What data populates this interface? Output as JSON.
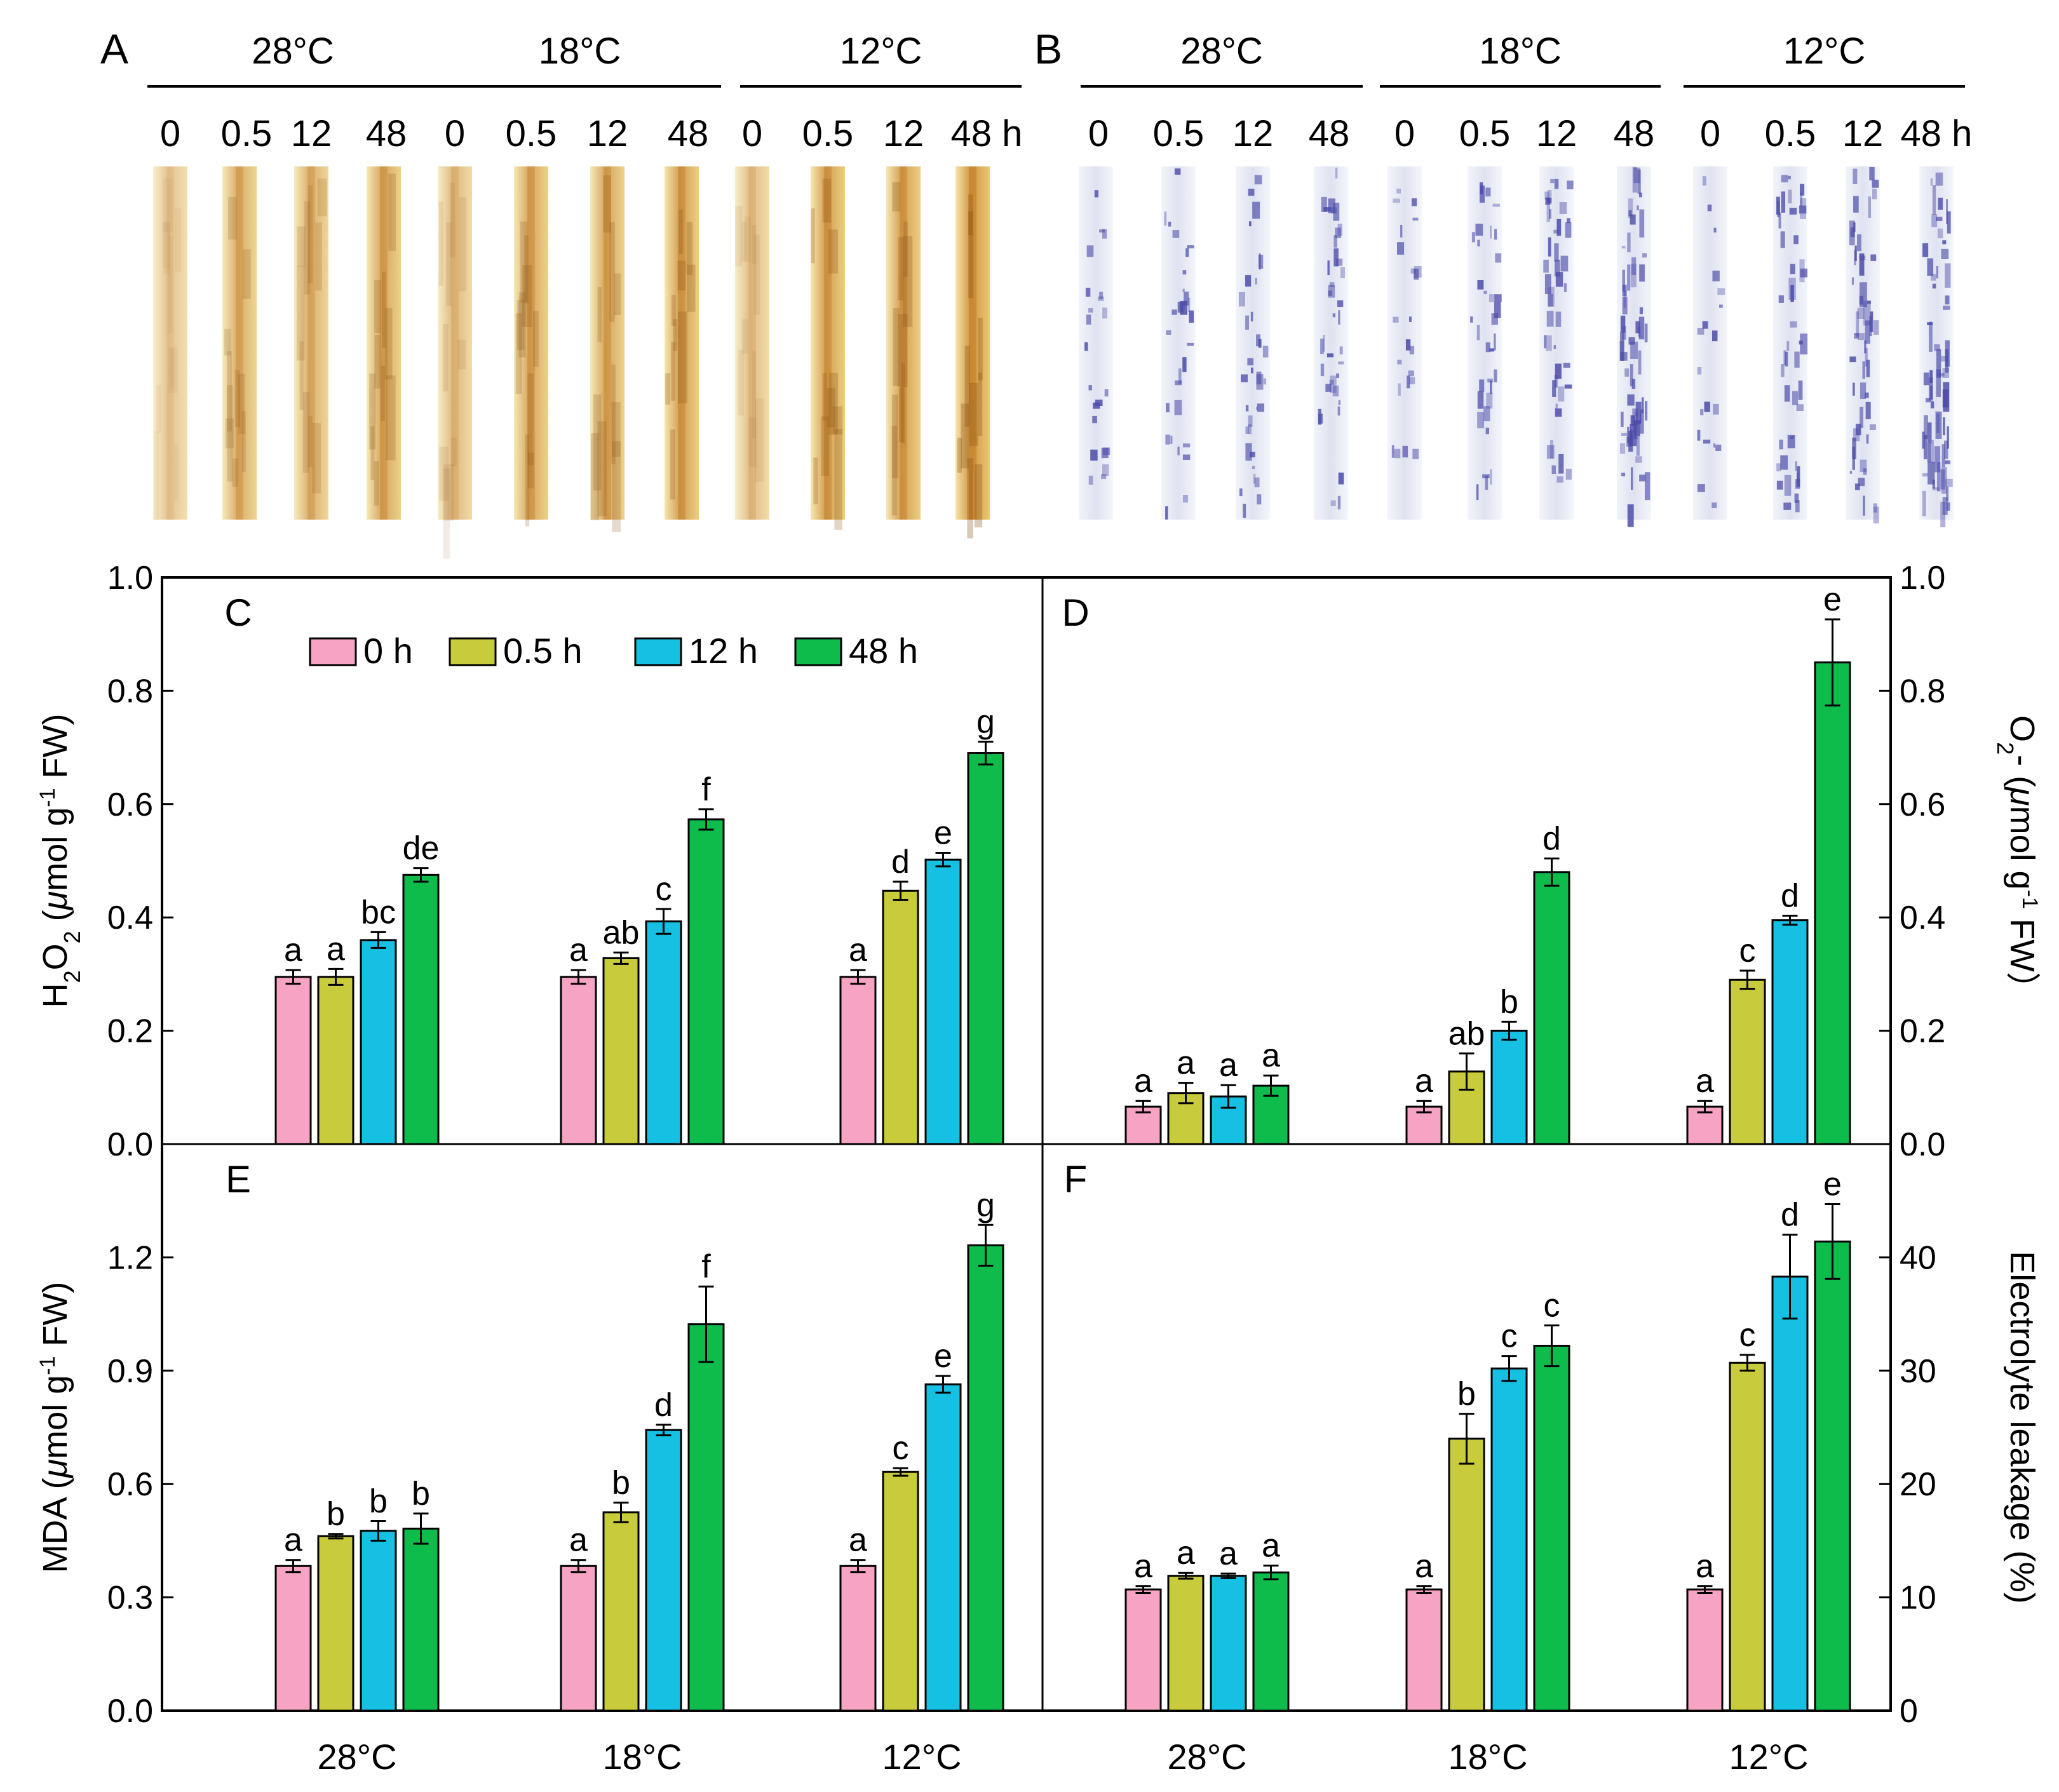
{
  "colors": {
    "h0": "#f7a3c3",
    "h05": "#c8cc3c",
    "h12": "#16c0e3",
    "h48": "#0ebc4c",
    "dab_light": "#f0d58a",
    "dab_dark": "#c0781e",
    "nbt_bg": "#eef2f8",
    "nbt_stain": "#4a4aa8"
  },
  "photos": {
    "A": {
      "label": "A",
      "groups": [
        {
          "temp": "28°C",
          "times": [
            "0",
            "0.5",
            "12",
            "48"
          ]
        },
        {
          "temp": "18°C",
          "times": [
            "0",
            "0.5",
            "12",
            "48"
          ]
        },
        {
          "temp": "12°C",
          "times": [
            "0",
            "0.5",
            "12",
            "48 h"
          ]
        }
      ],
      "stain_intensity": [
        0.15,
        0.5,
        0.45,
        0.6,
        0.3,
        0.6,
        0.6,
        0.7,
        0.25,
        0.7,
        0.7,
        0.85
      ]
    },
    "B": {
      "label": "B",
      "groups": [
        {
          "temp": "28°C",
          "times": [
            "0",
            "0.5",
            "12",
            "48"
          ]
        },
        {
          "temp": "18°C",
          "times": [
            "0",
            "0.5",
            "12",
            "48"
          ]
        },
        {
          "temp": "12°C",
          "times": [
            "0",
            "0.5",
            "12",
            "48 h"
          ]
        }
      ],
      "stain_intensity": [
        0.2,
        0.3,
        0.4,
        0.45,
        0.2,
        0.4,
        0.55,
        0.85,
        0.15,
        0.6,
        0.7,
        0.9
      ]
    }
  },
  "legend": {
    "items": [
      "0 h",
      "0.5 h",
      "12 h",
      "48 h"
    ]
  },
  "chart_data": [
    {
      "panel": "C",
      "type": "bar",
      "categories": [
        "28°C",
        "18°C",
        "12°C"
      ],
      "ylabel_parts": [
        "H",
        "2",
        "O",
        "2",
        " (",
        "μ",
        "mol g",
        "-1",
        " FW)"
      ],
      "ylim": [
        0,
        1.0
      ],
      "yticks": [
        "0.0",
        "0.2",
        "0.4",
        "0.6",
        "0.8",
        "1.0"
      ],
      "series": [
        {
          "name": "0 h",
          "values": [
            0.295,
            0.295,
            0.295
          ],
          "errors": [
            0.012,
            0.012,
            0.012
          ],
          "letters": [
            "a",
            "a",
            "a"
          ]
        },
        {
          "name": "0.5 h",
          "values": [
            0.295,
            0.328,
            0.447
          ],
          "errors": [
            0.014,
            0.01,
            0.016
          ],
          "letters": [
            "a",
            "ab",
            "d"
          ]
        },
        {
          "name": "12 h",
          "values": [
            0.36,
            0.393,
            0.502
          ],
          "errors": [
            0.014,
            0.022,
            0.012
          ],
          "letters": [
            "bc",
            "c",
            "e"
          ]
        },
        {
          "name": "48 h",
          "values": [
            0.475,
            0.573,
            0.69
          ],
          "errors": [
            0.012,
            0.018,
            0.02
          ],
          "letters": [
            "de",
            "f",
            "g"
          ]
        }
      ]
    },
    {
      "panel": "D",
      "type": "bar",
      "categories": [
        "28°C",
        "18°C",
        "12°C"
      ],
      "ylabel_parts": [
        "O",
        "2",
        "- (",
        "μ",
        "mol g",
        "-1",
        " FW）"
      ],
      "ylim": [
        0,
        1.0
      ],
      "yticks": [
        "0.0",
        "0.2",
        "0.4",
        "0.6",
        "0.8",
        "1.0"
      ],
      "series": [
        {
          "name": "0 h",
          "values": [
            0.066,
            0.066,
            0.066
          ],
          "errors": [
            0.01,
            0.01,
            0.01
          ],
          "letters": [
            "a",
            "a",
            "a"
          ]
        },
        {
          "name": "0.5 h",
          "values": [
            0.09,
            0.128,
            0.29
          ],
          "errors": [
            0.018,
            0.032,
            0.016
          ],
          "letters": [
            "a",
            "ab",
            "c"
          ]
        },
        {
          "name": "12 h",
          "values": [
            0.084,
            0.2,
            0.395
          ],
          "errors": [
            0.02,
            0.016,
            0.008
          ],
          "letters": [
            "a",
            "b",
            "d"
          ]
        },
        {
          "name": "48 h",
          "values": [
            0.103,
            0.48,
            0.85
          ],
          "errors": [
            0.018,
            0.024,
            0.076
          ],
          "letters": [
            "a",
            "d",
            "e"
          ]
        }
      ]
    },
    {
      "panel": "E",
      "type": "bar",
      "categories": [
        "28°C",
        "18°C",
        "12°C"
      ],
      "ylabel_parts": [
        "MDA (",
        "μ",
        "mol g",
        "-1",
        " FW)"
      ],
      "ylim": [
        0,
        1.5
      ],
      "yticks": [
        "0.0",
        "0.3",
        "0.6",
        "0.9",
        "1.2"
      ],
      "series": [
        {
          "name": "0 h",
          "values": [
            0.383,
            0.383,
            0.383
          ],
          "errors": [
            0.016,
            0.016,
            0.016
          ],
          "letters": [
            "a",
            "a",
            "a"
          ]
        },
        {
          "name": "0.5 h",
          "values": [
            0.462,
            0.525,
            0.632
          ],
          "errors": [
            0.006,
            0.026,
            0.01
          ],
          "letters": [
            "b",
            "b",
            "c"
          ]
        },
        {
          "name": "12 h",
          "values": [
            0.476,
            0.743,
            0.864
          ],
          "errors": [
            0.026,
            0.014,
            0.022
          ],
          "letters": [
            "b",
            "d",
            "e"
          ]
        },
        {
          "name": "48 h",
          "values": [
            0.482,
            1.023,
            1.232
          ],
          "errors": [
            0.04,
            0.1,
            0.054
          ],
          "letters": [
            "b",
            "f",
            "g"
          ]
        }
      ]
    },
    {
      "panel": "F",
      "type": "bar",
      "categories": [
        "28°C",
        "18°C",
        "12°C"
      ],
      "ylabel_parts": [
        "Electrolyte leakage (%)"
      ],
      "ylim": [
        0,
        50
      ],
      "yticks": [
        "0",
        "10",
        "20",
        "30",
        "40"
      ],
      "series": [
        {
          "name": "0 h",
          "values": [
            10.7,
            10.7,
            10.7
          ],
          "errors": [
            0.3,
            0.3,
            0.3
          ],
          "letters": [
            "a",
            "a",
            "a"
          ]
        },
        {
          "name": "0.5 h",
          "values": [
            11.9,
            24.0,
            30.7
          ],
          "errors": [
            0.25,
            2.2,
            0.7
          ],
          "letters": [
            "a",
            "b",
            "c"
          ]
        },
        {
          "name": "12 h",
          "values": [
            11.9,
            30.2,
            38.3
          ],
          "errors": [
            0.2,
            1.1,
            3.7
          ],
          "letters": [
            "a",
            "c",
            "d"
          ]
        },
        {
          "name": "48 h",
          "values": [
            12.2,
            32.2,
            41.4
          ],
          "errors": [
            0.6,
            1.8,
            3.3
          ],
          "letters": [
            "a",
            "c",
            "e"
          ]
        }
      ]
    }
  ]
}
